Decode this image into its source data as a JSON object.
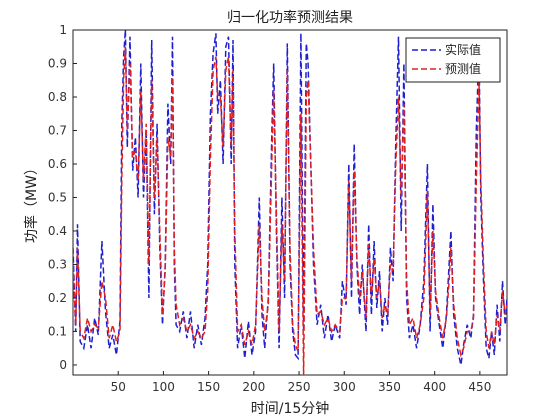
{
  "chart_data": {
    "type": "line",
    "title": "归一化功率预测结果",
    "xlabel": "时间/15分钟",
    "ylabel": "功率（MW）",
    "xlim": [
      0,
      480
    ],
    "ylim": [
      -0.03,
      1.0
    ],
    "xticks": [
      50,
      100,
      150,
      200,
      250,
      300,
      350,
      400,
      450
    ],
    "yticks": [
      0,
      0.1,
      0.2,
      0.3,
      0.4,
      0.5,
      0.6,
      0.7,
      0.8,
      0.9,
      1
    ],
    "grid": false,
    "legend_position": "top-right",
    "series": [
      {
        "name": "实际值",
        "color": "#1f1fd0",
        "style": "dashed",
        "points": [
          [
            0,
            0.35
          ],
          [
            3,
            0.1
          ],
          [
            5,
            0.42
          ],
          [
            8,
            0.07
          ],
          [
            12,
            0.05
          ],
          [
            16,
            0.12
          ],
          [
            20,
            0.05
          ],
          [
            24,
            0.14
          ],
          [
            28,
            0.09
          ],
          [
            32,
            0.37
          ],
          [
            36,
            0.16
          ],
          [
            40,
            0.05
          ],
          [
            44,
            0.09
          ],
          [
            48,
            0.03
          ],
          [
            52,
            0.13
          ],
          [
            54,
            0.72
          ],
          [
            56,
            0.92
          ],
          [
            58,
            1.0
          ],
          [
            60,
            0.65
          ],
          [
            63,
            0.98
          ],
          [
            66,
            0.58
          ],
          [
            69,
            0.68
          ],
          [
            72,
            0.5
          ],
          [
            75,
            0.9
          ],
          [
            78,
            0.5
          ],
          [
            81,
            0.7
          ],
          [
            84,
            0.2
          ],
          [
            87,
            0.97
          ],
          [
            90,
            0.45
          ],
          [
            93,
            0.72
          ],
          [
            96,
            0.35
          ],
          [
            99,
            0.12
          ],
          [
            102,
            0.3
          ],
          [
            105,
            0.78
          ],
          [
            108,
            0.6
          ],
          [
            110,
            0.98
          ],
          [
            112,
            0.3
          ],
          [
            114,
            0.12
          ],
          [
            118,
            0.1
          ],
          [
            122,
            0.16
          ],
          [
            126,
            0.08
          ],
          [
            130,
            0.16
          ],
          [
            134,
            0.05
          ],
          [
            138,
            0.12
          ],
          [
            142,
            0.06
          ],
          [
            146,
            0.14
          ],
          [
            149,
            0.3
          ],
          [
            152,
            0.75
          ],
          [
            155,
            0.93
          ],
          [
            158,
            0.99
          ],
          [
            160,
            0.75
          ],
          [
            163,
            0.85
          ],
          [
            166,
            0.6
          ],
          [
            169,
            0.95
          ],
          [
            172,
            0.98
          ],
          [
            175,
            0.6
          ],
          [
            177,
            0.97
          ],
          [
            179,
            0.3
          ],
          [
            182,
            0.05
          ],
          [
            186,
            0.12
          ],
          [
            190,
            0.02
          ],
          [
            194,
            0.13
          ],
          [
            198,
            0.03
          ],
          [
            202,
            0.1
          ],
          [
            206,
            0.5
          ],
          [
            209,
            0.15
          ],
          [
            212,
            0.05
          ],
          [
            216,
            0.2
          ],
          [
            220,
            0.7
          ],
          [
            222,
            0.9
          ],
          [
            225,
            0.4
          ],
          [
            228,
            0.05
          ],
          [
            231,
            0.5
          ],
          [
            234,
            0.2
          ],
          [
            237,
            0.96
          ],
          [
            240,
            0.3
          ],
          [
            243,
            0.1
          ],
          [
            246,
            0.03
          ],
          [
            249,
            0.02
          ],
          [
            252,
            0.99
          ],
          [
            255,
            0.1
          ],
          [
            258,
            0.96
          ],
          [
            260,
            0.9
          ],
          [
            263,
            0.6
          ],
          [
            266,
            0.3
          ],
          [
            270,
            0.12
          ],
          [
            274,
            0.18
          ],
          [
            278,
            0.08
          ],
          [
            282,
            0.15
          ],
          [
            286,
            0.07
          ],
          [
            290,
            0.12
          ],
          [
            295,
            0.08
          ],
          [
            298,
            0.25
          ],
          [
            302,
            0.18
          ],
          [
            305,
            0.6
          ],
          [
            308,
            0.2
          ],
          [
            311,
            0.66
          ],
          [
            314,
            0.3
          ],
          [
            317,
            0.15
          ],
          [
            320,
            0.3
          ],
          [
            324,
            0.1
          ],
          [
            327,
            0.42
          ],
          [
            330,
            0.15
          ],
          [
            333,
            0.37
          ],
          [
            336,
            0.17
          ],
          [
            339,
            0.28
          ],
          [
            342,
            0.1
          ],
          [
            345,
            0.2
          ],
          [
            348,
            0.12
          ],
          [
            351,
            0.35
          ],
          [
            354,
            0.25
          ],
          [
            357,
            0.67
          ],
          [
            360,
            0.98
          ],
          [
            363,
            0.4
          ],
          [
            366,
            0.9
          ],
          [
            369,
            0.2
          ],
          [
            372,
            0.08
          ],
          [
            376,
            0.12
          ],
          [
            380,
            0.05
          ],
          [
            384,
            0.12
          ],
          [
            388,
            0.25
          ],
          [
            392,
            0.6
          ],
          [
            395,
            0.1
          ],
          [
            398,
            0.48
          ],
          [
            401,
            0.2
          ],
          [
            405,
            0.12
          ],
          [
            409,
            0.05
          ],
          [
            413,
            0.15
          ],
          [
            416,
            0.3
          ],
          [
            418,
            0.4
          ],
          [
            421,
            0.15
          ],
          [
            425,
            0.05
          ],
          [
            429,
            0.0
          ],
          [
            432,
            0.06
          ],
          [
            436,
            0.12
          ],
          [
            440,
            0.08
          ],
          [
            443,
            0.15
          ],
          [
            446,
            0.7
          ],
          [
            449,
            0.95
          ],
          [
            451,
            0.5
          ],
          [
            454,
            0.25
          ],
          [
            457,
            0.05
          ],
          [
            460,
            0.02
          ],
          [
            463,
            0.1
          ],
          [
            466,
            0.03
          ],
          [
            469,
            0.18
          ],
          [
            472,
            0.07
          ],
          [
            475,
            0.25
          ],
          [
            478,
            0.12
          ],
          [
            480,
            0.2
          ]
        ]
      },
      {
        "name": "预测值",
        "color": "#e02020",
        "style": "dashed",
        "points": [
          [
            0,
            0.3
          ],
          [
            3,
            0.12
          ],
          [
            5,
            0.35
          ],
          [
            8,
            0.1
          ],
          [
            12,
            0.08
          ],
          [
            16,
            0.14
          ],
          [
            20,
            0.1
          ],
          [
            24,
            0.12
          ],
          [
            28,
            0.11
          ],
          [
            32,
            0.25
          ],
          [
            36,
            0.2
          ],
          [
            40,
            0.08
          ],
          [
            44,
            0.12
          ],
          [
            48,
            0.07
          ],
          [
            52,
            0.1
          ],
          [
            54,
            0.55
          ],
          [
            56,
            0.85
          ],
          [
            58,
            0.95
          ],
          [
            60,
            0.7
          ],
          [
            63,
            0.9
          ],
          [
            66,
            0.62
          ],
          [
            69,
            0.64
          ],
          [
            72,
            0.55
          ],
          [
            75,
            0.82
          ],
          [
            78,
            0.55
          ],
          [
            81,
            0.72
          ],
          [
            84,
            0.3
          ],
          [
            87,
            0.85
          ],
          [
            90,
            0.5
          ],
          [
            93,
            0.68
          ],
          [
            96,
            0.4
          ],
          [
            99,
            0.15
          ],
          [
            102,
            0.28
          ],
          [
            105,
            0.68
          ],
          [
            108,
            0.62
          ],
          [
            110,
            0.86
          ],
          [
            112,
            0.35
          ],
          [
            114,
            0.18
          ],
          [
            118,
            0.12
          ],
          [
            122,
            0.14
          ],
          [
            126,
            0.1
          ],
          [
            130,
            0.12
          ],
          [
            134,
            0.08
          ],
          [
            138,
            0.1
          ],
          [
            142,
            0.08
          ],
          [
            146,
            0.1
          ],
          [
            149,
            0.22
          ],
          [
            152,
            0.62
          ],
          [
            155,
            0.88
          ],
          [
            158,
            0.92
          ],
          [
            160,
            0.8
          ],
          [
            163,
            0.8
          ],
          [
            166,
            0.65
          ],
          [
            169,
            0.88
          ],
          [
            172,
            0.92
          ],
          [
            175,
            0.65
          ],
          [
            177,
            0.88
          ],
          [
            179,
            0.4
          ],
          [
            182,
            0.1
          ],
          [
            186,
            0.12
          ],
          [
            190,
            0.06
          ],
          [
            194,
            0.1
          ],
          [
            198,
            0.06
          ],
          [
            202,
            0.12
          ],
          [
            206,
            0.42
          ],
          [
            209,
            0.2
          ],
          [
            212,
            0.1
          ],
          [
            216,
            0.18
          ],
          [
            220,
            0.62
          ],
          [
            222,
            0.82
          ],
          [
            225,
            0.45
          ],
          [
            228,
            0.1
          ],
          [
            231,
            0.42
          ],
          [
            234,
            0.25
          ],
          [
            237,
            0.88
          ],
          [
            240,
            0.35
          ],
          [
            243,
            0.12
          ],
          [
            246,
            0.06
          ],
          [
            249,
            0.04
          ],
          [
            252,
            0.75
          ],
          [
            255,
            -0.03
          ],
          [
            258,
            0.8
          ],
          [
            260,
            0.85
          ],
          [
            263,
            0.6
          ],
          [
            266,
            0.35
          ],
          [
            270,
            0.15
          ],
          [
            274,
            0.16
          ],
          [
            278,
            0.12
          ],
          [
            282,
            0.14
          ],
          [
            286,
            0.1
          ],
          [
            290,
            0.12
          ],
          [
            295,
            0.1
          ],
          [
            298,
            0.2
          ],
          [
            302,
            0.2
          ],
          [
            305,
            0.55
          ],
          [
            308,
            0.25
          ],
          [
            311,
            0.58
          ],
          [
            314,
            0.32
          ],
          [
            317,
            0.2
          ],
          [
            320,
            0.28
          ],
          [
            324,
            0.14
          ],
          [
            327,
            0.36
          ],
          [
            330,
            0.2
          ],
          [
            333,
            0.32
          ],
          [
            336,
            0.2
          ],
          [
            339,
            0.25
          ],
          [
            342,
            0.14
          ],
          [
            345,
            0.18
          ],
          [
            348,
            0.15
          ],
          [
            351,
            0.3
          ],
          [
            354,
            0.28
          ],
          [
            357,
            0.6
          ],
          [
            360,
            0.8
          ],
          [
            363,
            0.5
          ],
          [
            366,
            0.78
          ],
          [
            369,
            0.25
          ],
          [
            372,
            0.12
          ],
          [
            376,
            0.14
          ],
          [
            380,
            0.08
          ],
          [
            384,
            0.12
          ],
          [
            388,
            0.2
          ],
          [
            392,
            0.52
          ],
          [
            395,
            0.15
          ],
          [
            398,
            0.4
          ],
          [
            401,
            0.22
          ],
          [
            405,
            0.14
          ],
          [
            409,
            0.08
          ],
          [
            413,
            0.14
          ],
          [
            416,
            0.25
          ],
          [
            418,
            0.35
          ],
          [
            421,
            0.18
          ],
          [
            425,
            0.08
          ],
          [
            429,
            0.03
          ],
          [
            432,
            0.05
          ],
          [
            436,
            0.1
          ],
          [
            440,
            0.1
          ],
          [
            443,
            0.14
          ],
          [
            446,
            0.55
          ],
          [
            449,
            0.85
          ],
          [
            451,
            0.55
          ],
          [
            454,
            0.3
          ],
          [
            457,
            0.1
          ],
          [
            460,
            0.05
          ],
          [
            463,
            0.1
          ],
          [
            466,
            0.06
          ],
          [
            469,
            0.15
          ],
          [
            472,
            0.1
          ],
          [
            475,
            0.22
          ],
          [
            478,
            0.15
          ],
          [
            480,
            0.18
          ]
        ]
      }
    ]
  }
}
